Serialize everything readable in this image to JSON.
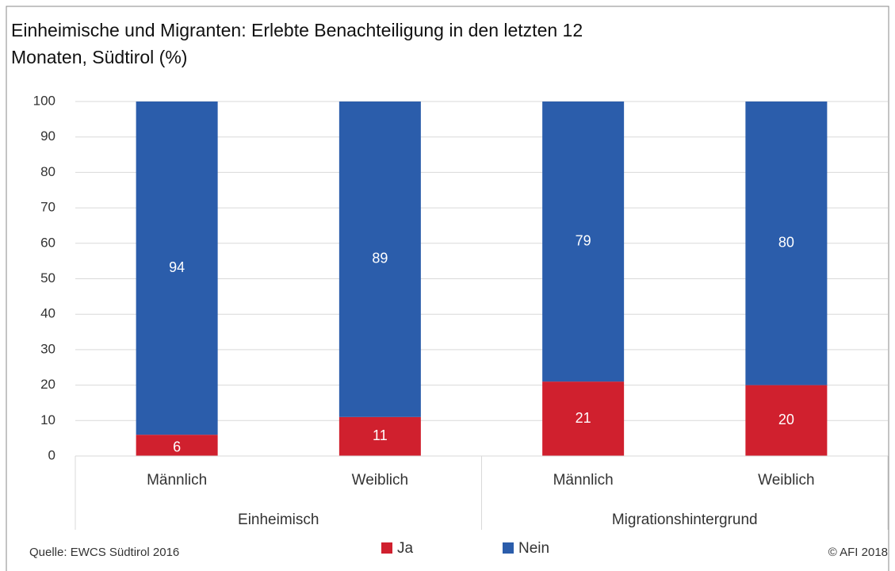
{
  "chart_data": {
    "type": "stacked_bar",
    "title": [
      "Einheimische und Migranten: Erlebte Benachteiligung in den letzten 12",
      "Monaten, Südtirol (%)"
    ],
    "categories": [
      "Männlich",
      "Weiblich",
      "Männlich",
      "Weiblich"
    ],
    "groups": [
      "Einheimisch",
      "Migrationshintergrund"
    ],
    "series": [
      {
        "name": "Ja",
        "color": "#d0202e",
        "values": [
          6,
          11,
          21,
          20
        ]
      },
      {
        "name": "Nein",
        "color": "#2b5dab",
        "values": [
          94,
          89,
          79,
          80
        ]
      }
    ],
    "ylim": [
      0,
      100
    ],
    "yticks": [
      0,
      10,
      20,
      30,
      40,
      50,
      60,
      70,
      80,
      90,
      100
    ],
    "grid": true,
    "source": "Quelle: EWCS Südtirol 2016",
    "credit": "© AFI 2018"
  }
}
